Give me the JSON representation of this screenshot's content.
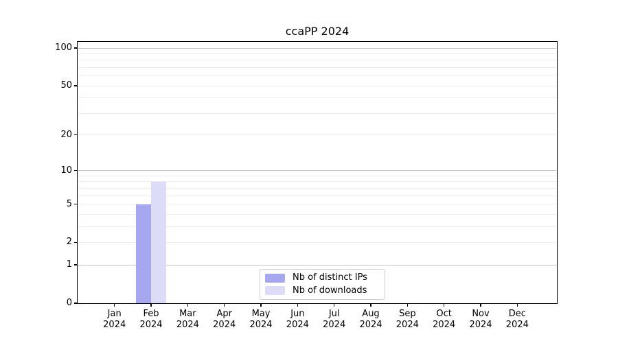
{
  "chart_data": {
    "type": "bar",
    "title": "ccaPP 2024",
    "categories": [
      "Jan",
      "Feb",
      "Mar",
      "Apr",
      "May",
      "Jun",
      "Jul",
      "Aug",
      "Sep",
      "Oct",
      "Nov",
      "Dec"
    ],
    "x_tick_second_line": "2024",
    "series": [
      {
        "name": "Nb of distinct IPs",
        "color": "#a7a7f0",
        "values": [
          0,
          5,
          0,
          0,
          0,
          0,
          0,
          0,
          0,
          0,
          0,
          0
        ]
      },
      {
        "name": "Nb of downloads",
        "color": "#dcdcf8",
        "values": [
          0,
          8,
          0,
          0,
          0,
          0,
          0,
          0,
          0,
          0,
          0,
          0
        ]
      }
    ],
    "y_scale": "log1p",
    "ylim": [
      0,
      112
    ],
    "y_ticks": [
      0,
      1,
      2,
      5,
      10,
      20,
      50,
      100
    ],
    "y_major_gridlines": [
      1,
      10,
      100
    ],
    "y_minor_gridlines": [
      2,
      3,
      4,
      5,
      6,
      7,
      8,
      9,
      20,
      30,
      40,
      50,
      60,
      70,
      80,
      90
    ],
    "legend_position": "lower center",
    "grid": true
  },
  "colors": {
    "background": "#ffffff",
    "spine": "#000000",
    "major_grid": "#c3c3c3",
    "minor_grid": "#ececec",
    "text": "#000000",
    "legend_border": "#cccccc"
  }
}
